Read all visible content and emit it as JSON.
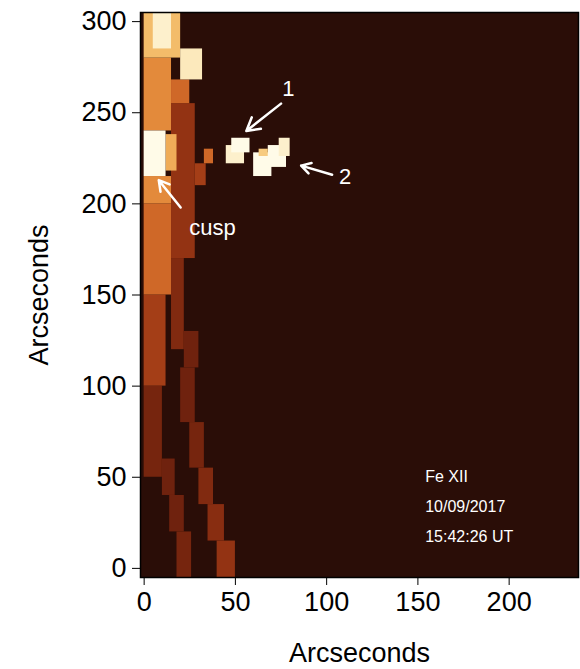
{
  "chart_data": {
    "type": "heatmap",
    "x_label": "Arcseconds",
    "y_label": "Arcseconds",
    "xlim": [
      -2,
      238
    ],
    "ylim": [
      -5,
      305
    ],
    "xticks": [
      0,
      50,
      100,
      150,
      200
    ],
    "yticks": [
      0,
      50,
      100,
      150,
      200,
      250,
      300
    ],
    "zlim": [
      0,
      1
    ],
    "cells": [
      [
        0,
        10,
        50,
        100,
        0.22
      ],
      [
        0,
        12,
        100,
        150,
        0.35
      ],
      [
        15,
        22,
        120,
        170,
        0.25
      ],
      [
        22,
        30,
        110,
        130,
        0.2
      ],
      [
        20,
        28,
        80,
        110,
        0.2
      ],
      [
        25,
        33,
        55,
        80,
        0.22
      ],
      [
        30,
        38,
        35,
        55,
        0.25
      ],
      [
        35,
        44,
        15,
        35,
        0.27
      ],
      [
        40,
        50,
        -5,
        15,
        0.3
      ],
      [
        10,
        17,
        40,
        60,
        0.2
      ],
      [
        14,
        22,
        20,
        40,
        0.2
      ],
      [
        18,
        26,
        -5,
        20,
        0.22
      ],
      [
        0,
        15,
        150,
        200,
        0.5
      ],
      [
        15,
        28,
        170,
        255,
        0.3
      ],
      [
        0,
        15,
        200,
        215,
        0.6
      ],
      [
        0,
        15,
        240,
        280,
        0.6
      ],
      [
        0,
        20,
        280,
        305,
        0.75
      ],
      [
        5,
        15,
        285,
        305,
        0.95
      ],
      [
        15,
        25,
        255,
        268,
        0.5
      ],
      [
        20,
        32,
        268,
        285,
        0.92
      ],
      [
        12,
        18,
        218,
        238,
        0.7
      ],
      [
        0,
        12,
        215,
        240,
        1.0
      ],
      [
        28,
        34,
        210,
        222,
        0.35
      ],
      [
        33,
        38,
        222,
        230,
        0.5
      ],
      [
        45,
        55,
        222,
        232,
        0.95
      ],
      [
        48,
        58,
        228,
        236,
        1.0
      ],
      [
        60,
        70,
        215,
        228,
        1.0
      ],
      [
        68,
        78,
        220,
        232,
        1.0
      ],
      [
        74,
        80,
        226,
        236,
        0.95
      ],
      [
        63,
        68,
        226,
        230,
        0.8
      ]
    ],
    "annotations": [
      "1",
      "2",
      "cusp"
    ],
    "caption_lines": [
      "Fe XII",
      "10/09/2017",
      "15:42:26 UT"
    ]
  }
}
